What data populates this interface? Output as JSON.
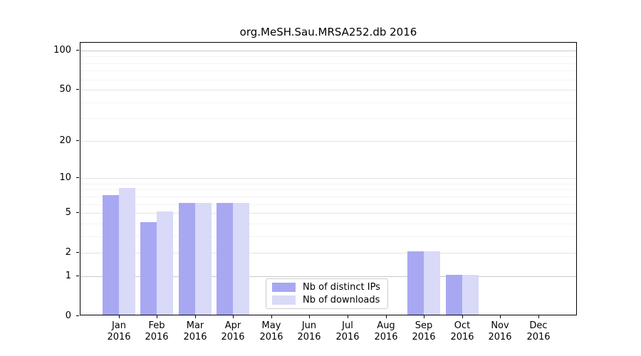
{
  "chart_data": {
    "type": "bar",
    "title": "org.MeSH.Sau.MRSA252.db 2016",
    "categories": [
      "Jan",
      "Feb",
      "Mar",
      "Apr",
      "May",
      "Jun",
      "Jul",
      "Aug",
      "Sep",
      "Oct",
      "Nov",
      "Dec"
    ],
    "category_year": "2016",
    "series": [
      {
        "name": "Nb of distinct IPs",
        "color": "#a8a8f2",
        "values": [
          7,
          4,
          6,
          6,
          0,
          0,
          0,
          0,
          2,
          1,
          0,
          0
        ]
      },
      {
        "name": "Nb of downloads",
        "color": "#d9d9f8",
        "values": [
          8,
          5,
          6,
          6,
          0,
          0,
          0,
          0,
          2,
          1,
          0,
          0
        ]
      }
    ],
    "yticks": [
      0,
      1,
      2,
      5,
      10,
      20,
      50,
      100
    ],
    "minor_gridlines": [
      3,
      4,
      6,
      7,
      8,
      9,
      30,
      40,
      60,
      70,
      80,
      90
    ],
    "scale": "log1p",
    "ylim": [
      0,
      115
    ],
    "grid": true,
    "legend_position": "lower center",
    "colors": {
      "grid_major_strong": "#c9c9c9",
      "grid_major": "#e4e4e4",
      "grid_minor": "#f3f3f3",
      "spine": "#000000",
      "background": "#ffffff"
    }
  }
}
